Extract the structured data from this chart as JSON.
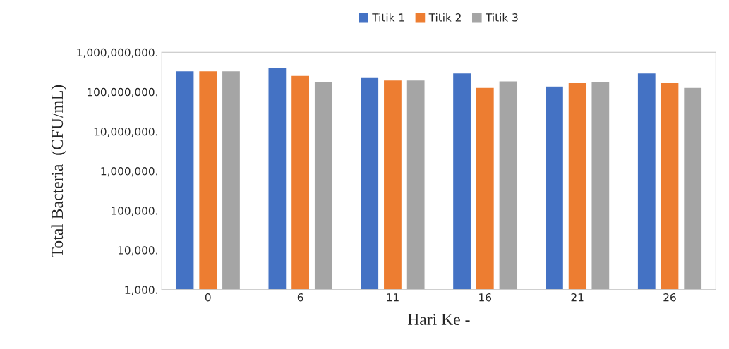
{
  "chart_data": {
    "type": "bar",
    "xlabel": "Hari Ke -",
    "ylabel": "Total Bacteria  (CFU/mL)",
    "categories": [
      "0",
      "6",
      "11",
      "16",
      "21",
      "26"
    ],
    "series": [
      {
        "name": "Titik 1",
        "color": "#4472c4",
        "values": [
          340000000,
          420000000,
          240000000,
          300000000,
          140000000,
          300000000
        ]
      },
      {
        "name": "Titik 2",
        "color": "#ed7d31",
        "values": [
          340000000,
          260000000,
          200000000,
          130000000,
          170000000,
          170000000
        ]
      },
      {
        "name": "Titik 3",
        "color": "#a5a5a5",
        "values": [
          340000000,
          185000000,
          200000000,
          190000000,
          180000000,
          130000000
        ]
      }
    ],
    "log": true,
    "ylim": [
      1000,
      1000000000
    ],
    "yticks": [
      {
        "value": 1000,
        "label": "1,000."
      },
      {
        "value": 10000,
        "label": "10,000."
      },
      {
        "value": 100000,
        "label": "100,000."
      },
      {
        "value": 1000000,
        "label": "1,000,000."
      },
      {
        "value": 10000000,
        "label": "10,000,000."
      },
      {
        "value": 100000000,
        "label": "100,000,000."
      },
      {
        "value": 1000000000,
        "label": "1,000,000,000."
      }
    ],
    "grid": false,
    "legend": "top"
  }
}
